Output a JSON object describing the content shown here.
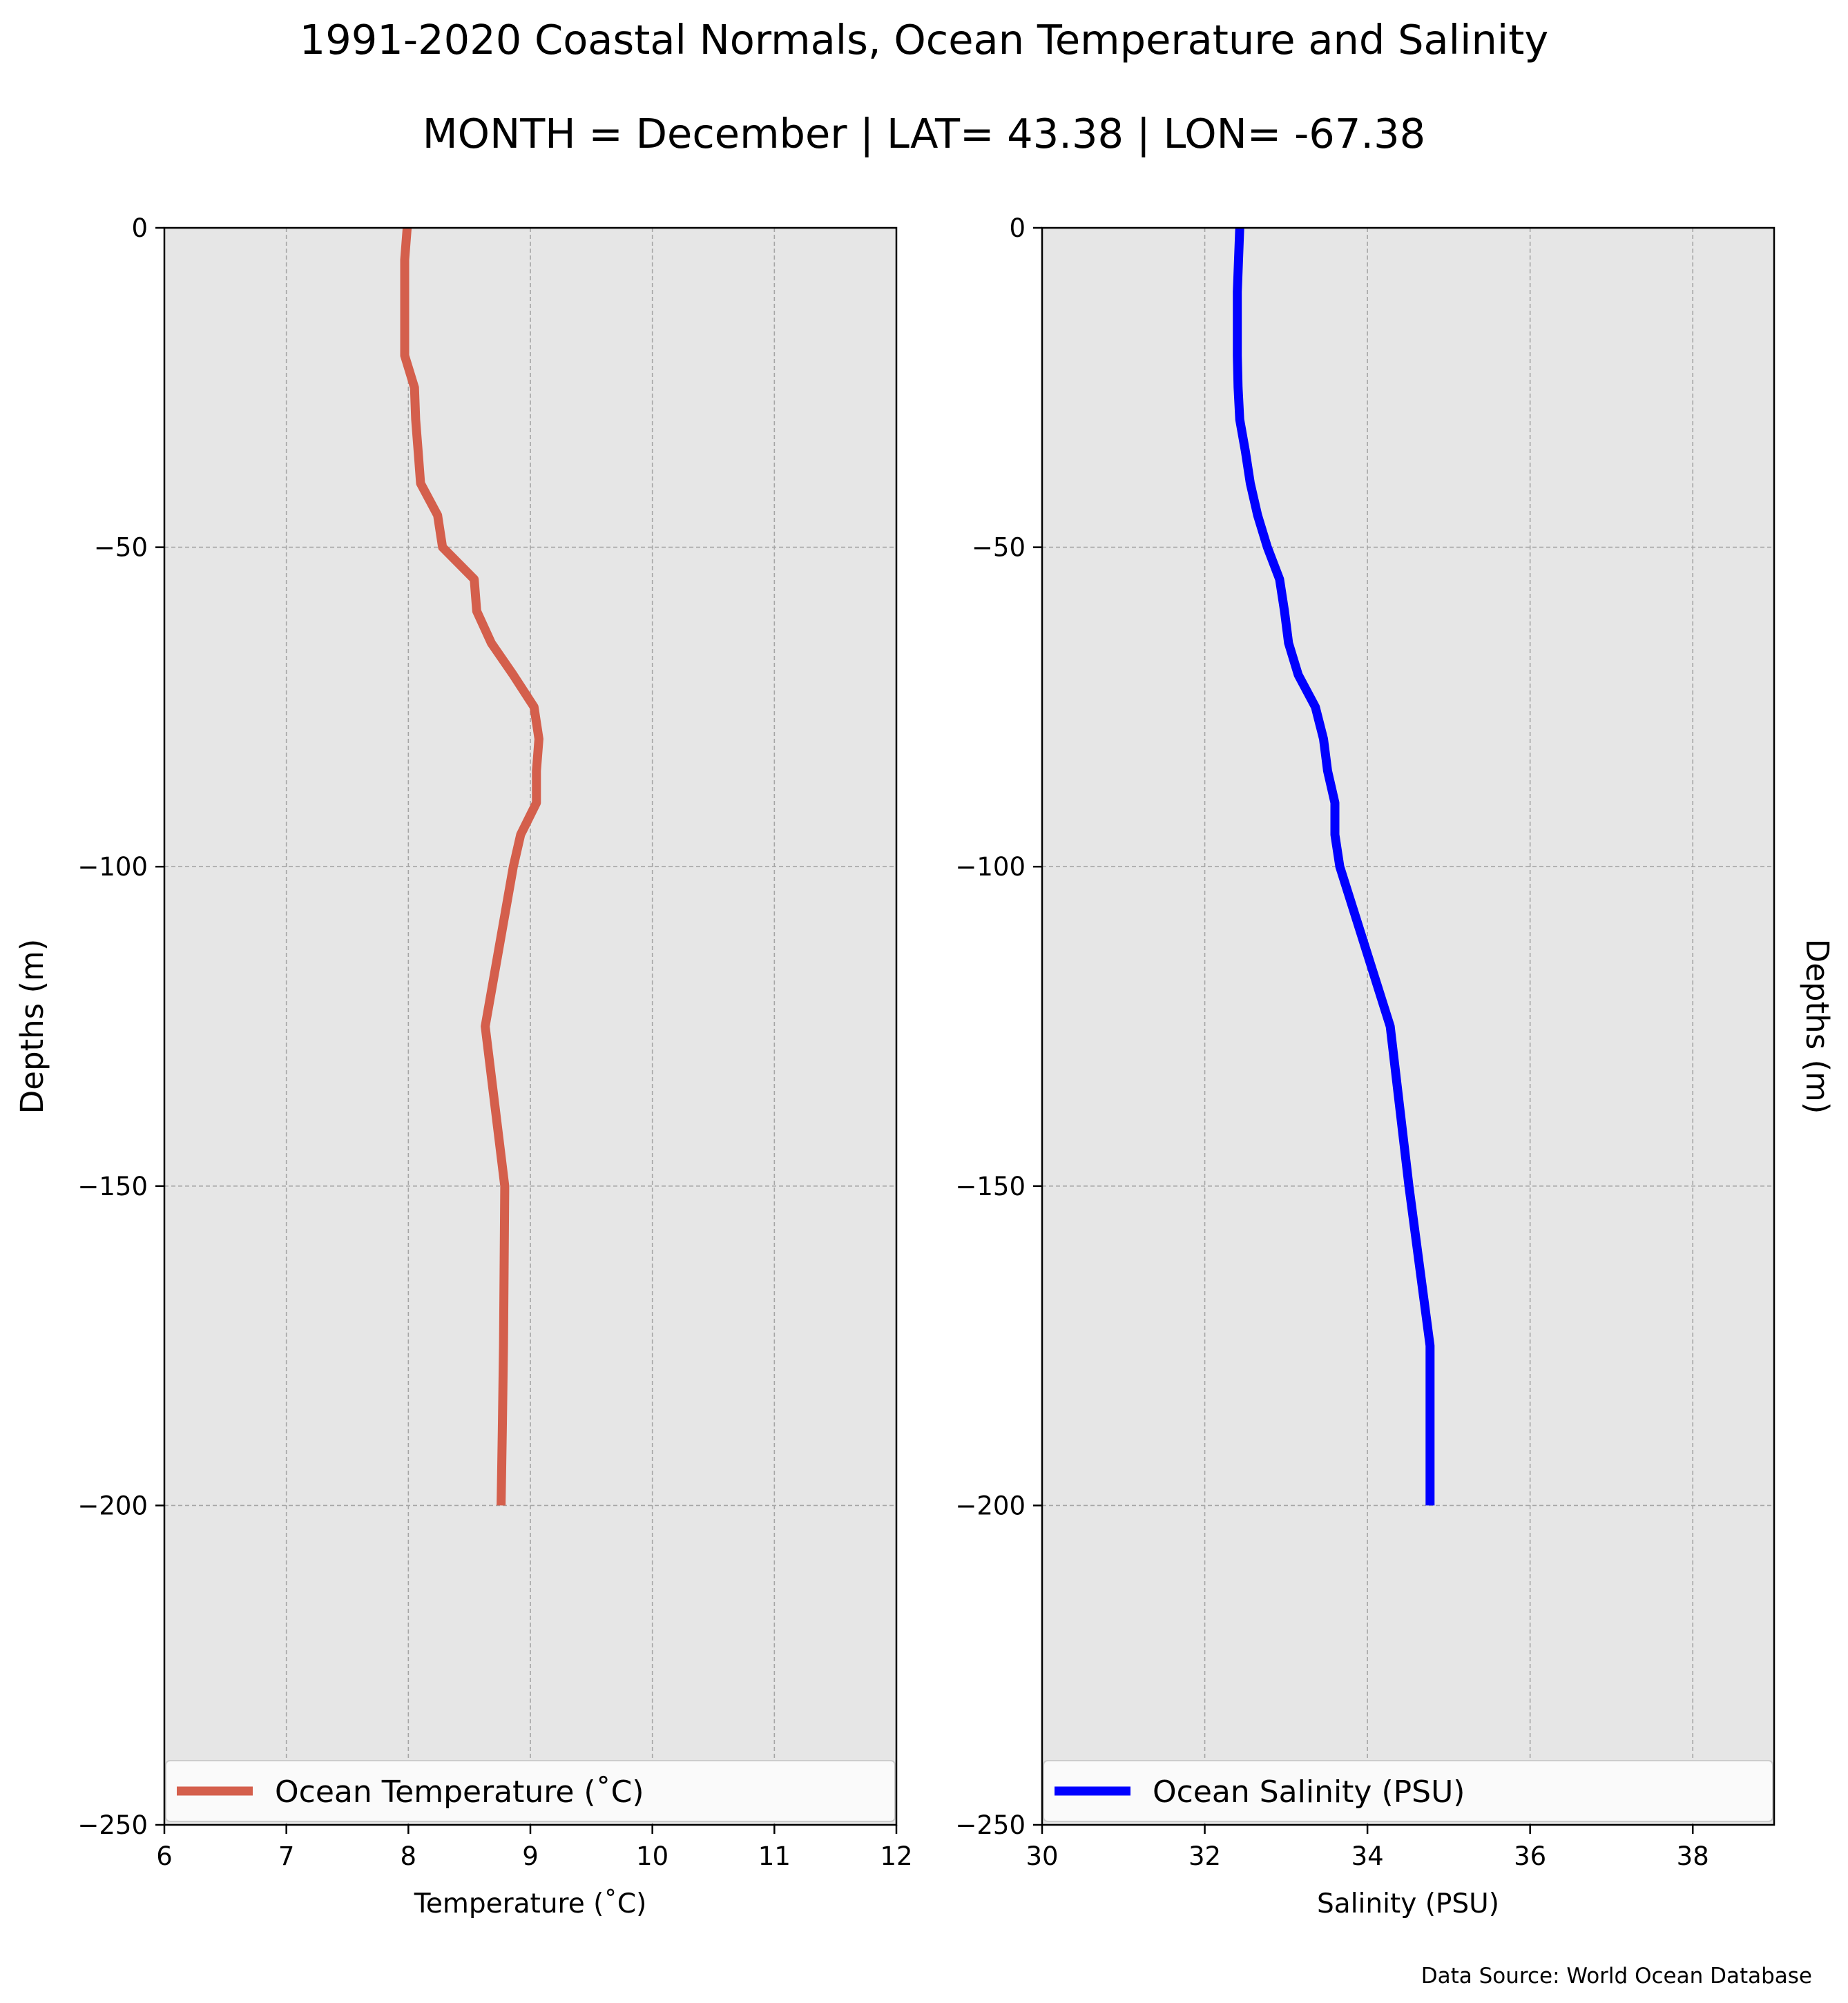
{
  "title": "1991-2020 Coastal Normals, Ocean Temperature and Salinity",
  "subtitle": "MONTH = December | LAT= 43.38 | LON= -67.38",
  "source_note": "Data Source: World Ocean Database",
  "colors": {
    "panel_bg": "#e6e6e6",
    "grid": "#a6a6a6",
    "temperature_line": "#d45f4c",
    "salinity_line": "#0000ff"
  },
  "chart_data": [
    {
      "type": "line",
      "xlabel": "Temperature ($^\\circ$C)",
      "xlabel_display": "Temperature (˚C)",
      "ylabel": "Depths (m)",
      "xlim": [
        6,
        12
      ],
      "ylim": [
        -250,
        0
      ],
      "xticks": [
        6,
        7,
        8,
        9,
        10,
        11,
        12
      ],
      "yticks": [
        0,
        -50,
        -100,
        -150,
        -200,
        -250
      ],
      "grid": true,
      "legend_position": "bottom",
      "series": [
        {
          "name": "Ocean Temperature (˚C)",
          "x": [
            7.99,
            7.97,
            7.97,
            7.97,
            7.97,
            8.05,
            8.06,
            8.08,
            8.1,
            8.24,
            8.28,
            8.54,
            8.56,
            8.68,
            8.86,
            9.03,
            9.07,
            9.05,
            9.05,
            8.92,
            8.86,
            8.63,
            8.79,
            8.78,
            8.77,
            8.76
          ],
          "y": [
            0,
            -5,
            -10,
            -15,
            -20,
            -25,
            -30,
            -35,
            -40,
            -45,
            -50,
            -55,
            -60,
            -65,
            -70,
            -75,
            -80,
            -85,
            -90,
            -95,
            -100,
            -125,
            -150,
            -175,
            -188,
            -200
          ]
        }
      ]
    },
    {
      "type": "line",
      "xlabel": "Salinity (PSU)",
      "ylabel": "Depths (m)",
      "xlim": [
        30,
        39
      ],
      "ylim": [
        -250,
        0
      ],
      "xticks": [
        30,
        32,
        34,
        36,
        38
      ],
      "xticks_display": [
        "30",
        "32",
        "34",
        "36",
        "38"
      ],
      "yticks": [
        0,
        -50,
        -100,
        -150,
        -200,
        -250
      ],
      "grid": true,
      "legend_position": "bottom",
      "series": [
        {
          "name": "Ocean Salinity (PSU)",
          "x": [
            32.43,
            32.4,
            32.4,
            32.4,
            32.41,
            32.43,
            32.5,
            32.56,
            32.65,
            32.77,
            32.92,
            32.98,
            33.03,
            33.15,
            33.36,
            33.46,
            33.51,
            33.6,
            33.6,
            33.66,
            34.28,
            34.51,
            34.77,
            34.77
          ],
          "y": [
            0,
            -10,
            -15,
            -20,
            -25,
            -30,
            -35,
            -40,
            -45,
            -50,
            -55,
            -60,
            -65,
            -70,
            -75,
            -80,
            -85,
            -90,
            -95,
            -100,
            -125,
            -150,
            -175,
            -200
          ]
        }
      ]
    }
  ]
}
